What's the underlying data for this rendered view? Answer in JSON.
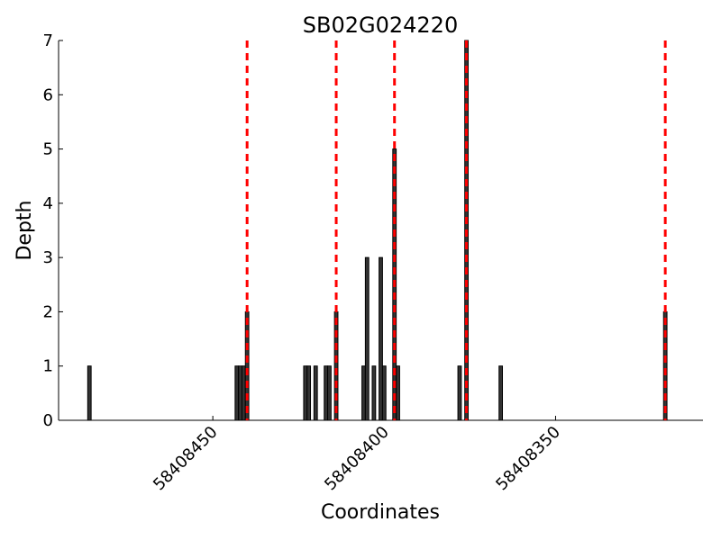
{
  "chart_data": {
    "type": "bar",
    "title": "SB02G024220",
    "x_label": "Coordinates",
    "y_label": "Depth",
    "x": [
      58408486,
      58408443,
      58408442,
      58408441,
      58408440,
      58408423,
      58408422,
      58408420,
      58408417,
      58408416,
      58408414,
      58408406,
      58408405,
      58408403,
      58408401,
      58408400,
      58408397,
      58408396,
      58408378,
      58408376,
      58408366,
      58408318
    ],
    "values": [
      1,
      1,
      1,
      1,
      2,
      1,
      1,
      1,
      1,
      1,
      2,
      1,
      3,
      1,
      3,
      1,
      5,
      1,
      1,
      7,
      1,
      2
    ],
    "color": "#333333",
    "vlines": [
      58408440,
      58408414,
      58408397,
      58408376,
      58408318
    ],
    "vline_color": "#ff0000",
    "xlim": [
      58408495,
      58408307
    ],
    "xticks": [
      58408450,
      58408400,
      58408350
    ],
    "ylim": [
      0,
      7
    ],
    "yticks": [
      0,
      1,
      2,
      3,
      4,
      5,
      6,
      7
    ]
  }
}
